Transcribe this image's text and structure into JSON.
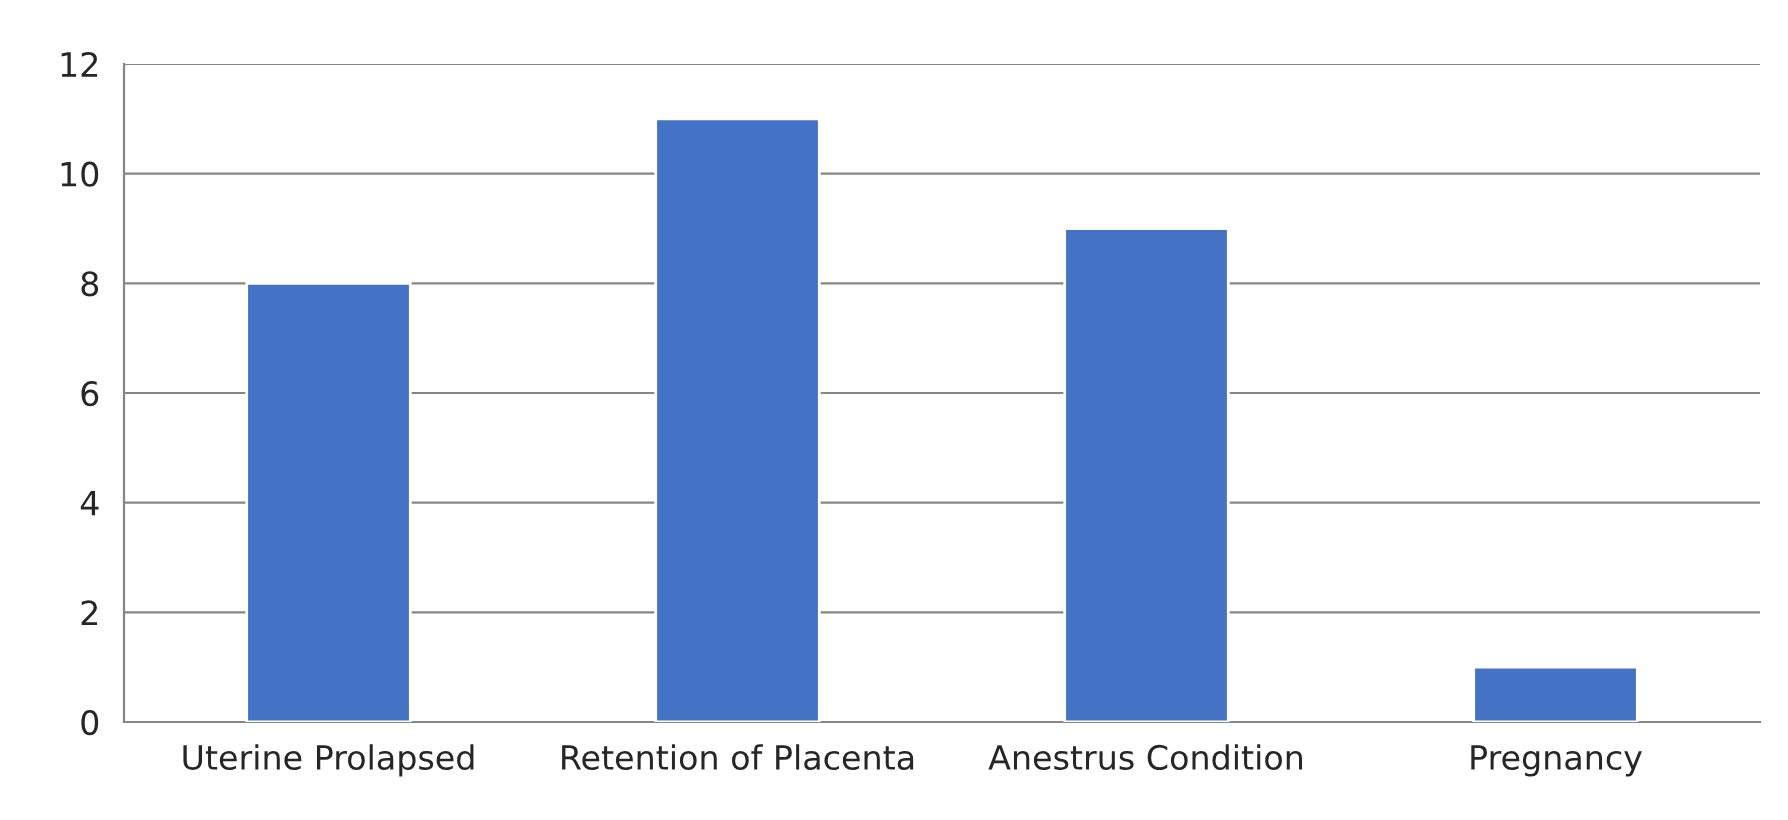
{
  "chart_data": {
    "type": "bar",
    "categories": [
      "Uterine Prolapsed",
      "Retention of Placenta",
      "Anestrus Condition",
      "Pregnancy"
    ],
    "values": [
      8,
      11,
      9,
      1
    ],
    "color": "#4472c4",
    "ylim": [
      0,
      12
    ],
    "yticks": [
      0,
      2,
      4,
      6,
      8,
      10,
      12
    ],
    "grid": "y",
    "legend": false
  }
}
